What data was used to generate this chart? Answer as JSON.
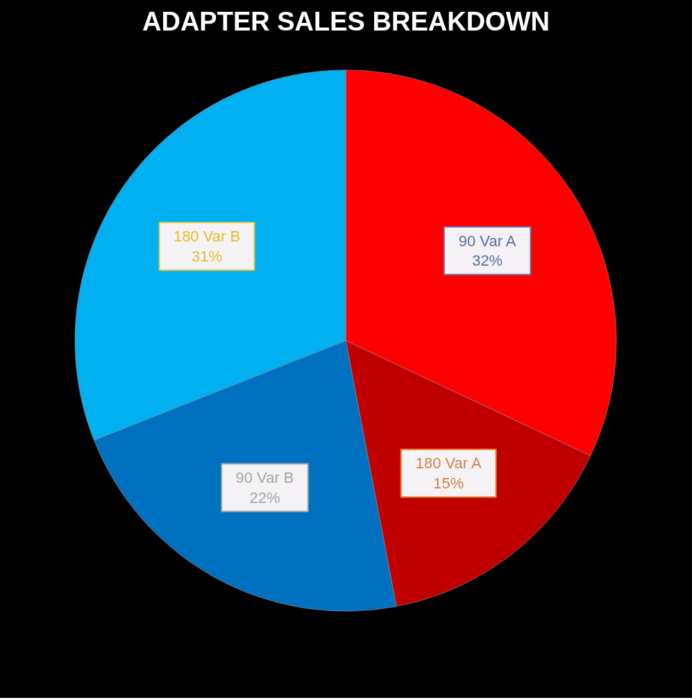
{
  "chart_data": {
    "type": "pie",
    "title": "ADAPTER SALES BREAKDOWN",
    "categories": [
      "90 Var A",
      "180 Var A",
      "90 Var B",
      "180 Var B"
    ],
    "values": [
      32,
      15,
      22,
      31
    ],
    "value_labels": [
      "32%",
      "15%",
      "22%",
      "31%"
    ],
    "colors": [
      "#ff0000",
      "#c00000",
      "#0070c0",
      "#00b0f0"
    ]
  }
}
